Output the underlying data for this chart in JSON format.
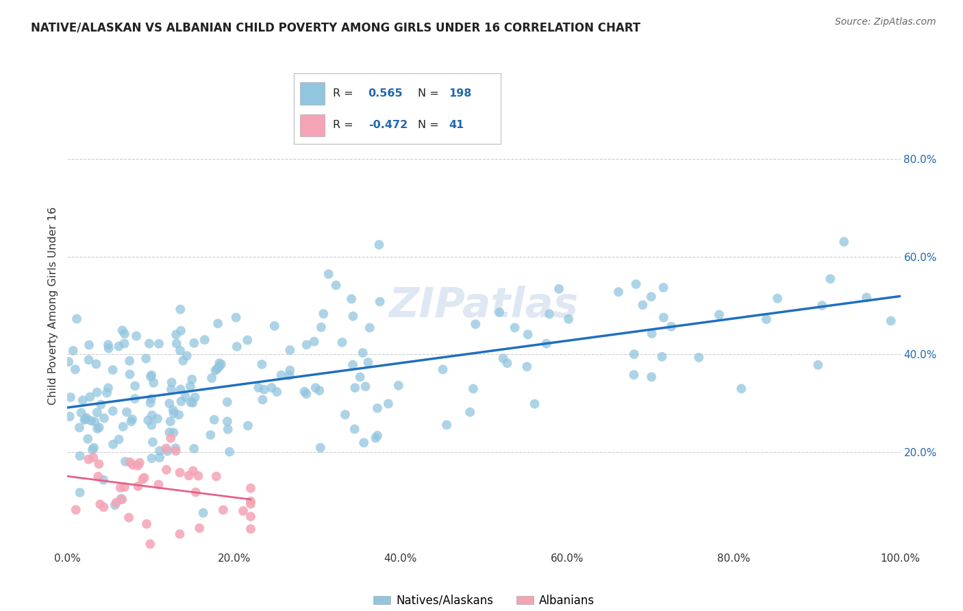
{
  "title": "NATIVE/ALASKAN VS ALBANIAN CHILD POVERTY AMONG GIRLS UNDER 16 CORRELATION CHART",
  "source": "Source: ZipAtlas.com",
  "ylabel": "Child Poverty Among Girls Under 16",
  "xlim": [
    0,
    1
  ],
  "ylim": [
    0,
    1
  ],
  "blue_R": "0.565",
  "blue_N": "198",
  "pink_R": "-0.472",
  "pink_N": "41",
  "blue_color": "#92c5de",
  "pink_color": "#f4a4b5",
  "blue_line_color": "#1f6fbf",
  "pink_line_color": "#e85e8a",
  "watermark": "ZIPatlas",
  "legend_label_blue": "Natives/Alaskans",
  "legend_label_pink": "Albanians",
  "background_color": "#ffffff",
  "grid_color": "#cccccc",
  "title_color": "#222222",
  "source_color": "#666666",
  "right_tick_color": "#2068b0",
  "ytick_labels": [
    "20.0%",
    "40.0%",
    "60.0%",
    "80.0%"
  ],
  "ytick_vals": [
    0.2,
    0.4,
    0.6,
    0.8
  ],
  "xtick_vals": [
    0.0,
    0.2,
    0.4,
    0.6,
    0.8,
    1.0
  ],
  "xtick_labels": [
    "0.0%",
    "20.0%",
    "40.0%",
    "60.0%",
    "80.0%",
    "100.0%"
  ],
  "blue_line_x0": 0.0,
  "blue_line_y0": 0.25,
  "blue_line_x1": 1.0,
  "blue_line_y1": 0.5,
  "pink_line_x0": 0.0,
  "pink_line_y0": 0.24,
  "pink_line_x1": 0.2,
  "pink_line_y1": 0.02
}
